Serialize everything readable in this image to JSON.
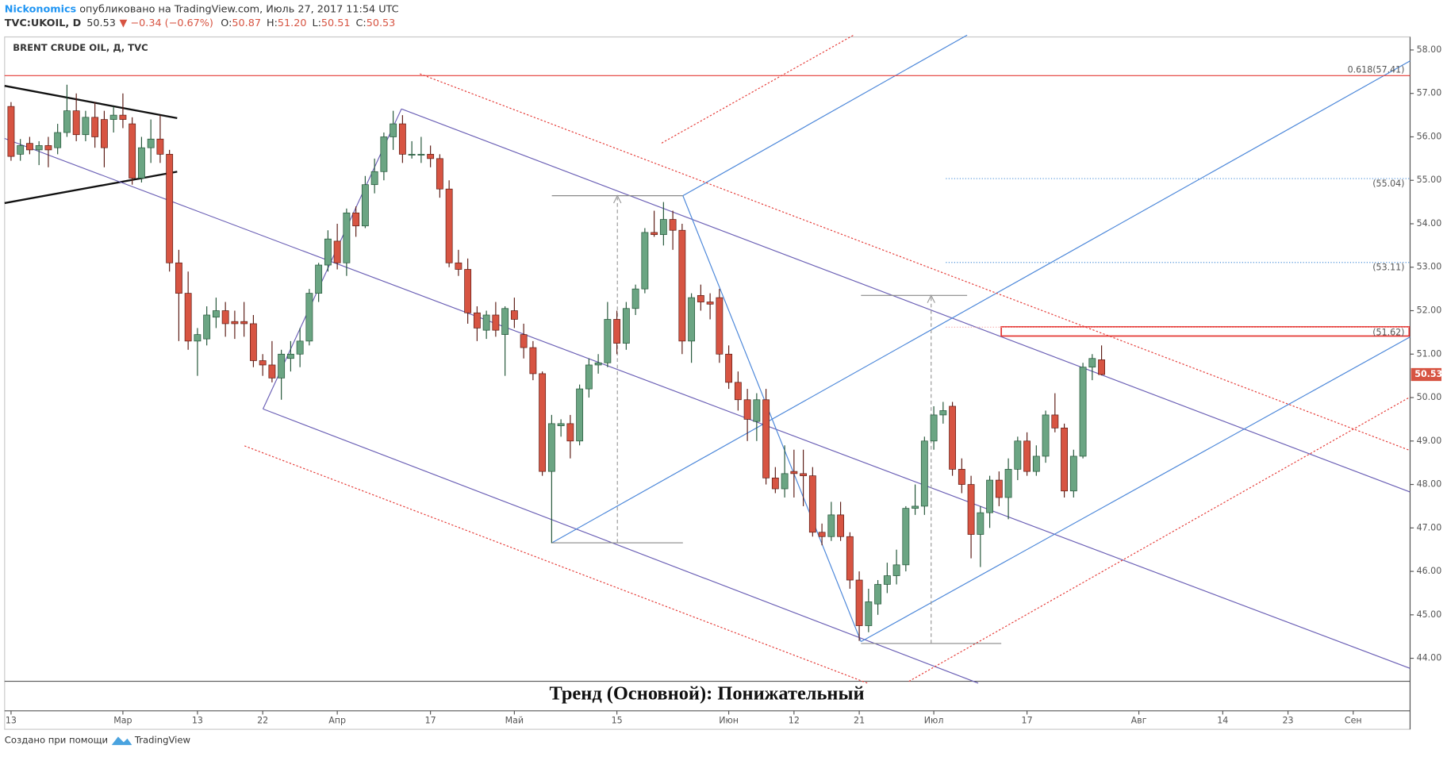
{
  "header": {
    "author": "Nickonomics",
    "published": " опубликовано на TradingView.com, Июль 27, 2017 11:54 UTC",
    "symbol": "TVC:UKOIL, D",
    "last": "50.53",
    "change": "▼ −0.34 (−0.67%)",
    "ohlc": [
      {
        "label": "O:",
        "value": "50.87"
      },
      {
        "label": "H:",
        "value": "51.20"
      },
      {
        "label": "L:",
        "value": "50.51"
      },
      {
        "label": "C:",
        "value": "50.53"
      }
    ]
  },
  "chart_data": {
    "type": "candlestick",
    "title": "BRENT CRUDE OIL, Д, TVC",
    "up_color": "#6ba583",
    "up_border": "#225437",
    "down_color": "#d75442",
    "down_border": "#5b1a13",
    "candles": [
      [
        56.7,
        56.8,
        55.45,
        55.55
      ],
      [
        55.6,
        55.95,
        55.45,
        55.8
      ],
      [
        55.85,
        56.0,
        55.6,
        55.7
      ],
      [
        55.7,
        55.9,
        55.35,
        55.8
      ],
      [
        55.8,
        56.0,
        55.3,
        55.7
      ],
      [
        55.75,
        56.3,
        55.6,
        56.1
      ],
      [
        56.1,
        57.2,
        56.0,
        56.6
      ],
      [
        56.6,
        57.0,
        55.9,
        56.05
      ],
      [
        56.05,
        56.6,
        55.9,
        56.45
      ],
      [
        56.45,
        56.8,
        55.75,
        56.0
      ],
      [
        56.4,
        56.6,
        55.3,
        55.75
      ],
      [
        56.4,
        56.7,
        56.1,
        56.5
      ],
      [
        56.5,
        57.0,
        56.2,
        56.4
      ],
      [
        56.3,
        56.45,
        54.9,
        55.05
      ],
      [
        55.05,
        56.0,
        54.95,
        55.75
      ],
      [
        55.75,
        56.4,
        55.4,
        55.95
      ],
      [
        55.95,
        56.5,
        55.4,
        55.6
      ],
      [
        55.6,
        55.7,
        52.9,
        53.1
      ],
      [
        53.1,
        53.4,
        51.3,
        52.4
      ],
      [
        52.4,
        52.9,
        51.1,
        51.3
      ],
      [
        51.3,
        51.6,
        50.5,
        51.45
      ],
      [
        51.35,
        52.1,
        51.2,
        51.9
      ],
      [
        51.85,
        52.3,
        51.6,
        52.0
      ],
      [
        52.0,
        52.2,
        51.4,
        51.7
      ],
      [
        51.75,
        52.0,
        51.35,
        51.7
      ],
      [
        51.75,
        52.2,
        51.4,
        51.7
      ],
      [
        51.7,
        51.9,
        50.7,
        50.85
      ],
      [
        50.85,
        51.0,
        50.5,
        50.75
      ],
      [
        50.75,
        51.3,
        50.35,
        50.45
      ],
      [
        50.45,
        51.1,
        49.95,
        51.0
      ],
      [
        50.9,
        51.3,
        50.6,
        51.0
      ],
      [
        51.0,
        51.6,
        50.7,
        51.3
      ],
      [
        51.3,
        52.5,
        51.2,
        52.4
      ],
      [
        52.4,
        53.1,
        52.2,
        53.05
      ],
      [
        53.05,
        53.85,
        52.9,
        53.65
      ],
      [
        53.6,
        54.0,
        52.95,
        53.1
      ],
      [
        53.1,
        54.35,
        52.8,
        54.25
      ],
      [
        54.25,
        54.4,
        53.7,
        53.95
      ],
      [
        53.95,
        55.1,
        53.9,
        54.9
      ],
      [
        54.9,
        55.5,
        54.7,
        55.2
      ],
      [
        55.2,
        56.1,
        55.0,
        56.0
      ],
      [
        56.0,
        56.6,
        55.7,
        56.3
      ],
      [
        56.3,
        56.5,
        55.4,
        55.6
      ],
      [
        55.6,
        55.9,
        55.5,
        55.6
      ],
      [
        55.6,
        56.0,
        55.4,
        55.6
      ],
      [
        55.6,
        55.8,
        55.3,
        55.5
      ],
      [
        55.5,
        55.6,
        54.6,
        54.8
      ],
      [
        54.8,
        55.0,
        53.0,
        53.1
      ],
      [
        53.1,
        53.4,
        52.8,
        52.95
      ],
      [
        52.95,
        53.2,
        51.7,
        51.95
      ],
      [
        51.95,
        52.1,
        51.3,
        51.6
      ],
      [
        51.55,
        52.0,
        51.35,
        51.9
      ],
      [
        51.9,
        52.2,
        51.4,
        51.55
      ],
      [
        51.45,
        52.1,
        50.5,
        52.05
      ],
      [
        52.0,
        52.3,
        51.6,
        51.8
      ],
      [
        51.45,
        51.7,
        50.9,
        51.15
      ],
      [
        51.15,
        51.3,
        50.4,
        50.55
      ],
      [
        50.55,
        50.6,
        48.2,
        48.3
      ],
      [
        48.3,
        49.6,
        46.65,
        49.4
      ],
      [
        49.35,
        49.5,
        49.1,
        49.4
      ],
      [
        49.4,
        49.6,
        48.6,
        49.0
      ],
      [
        49.0,
        50.3,
        48.9,
        50.2
      ],
      [
        50.2,
        50.9,
        50.0,
        50.75
      ],
      [
        50.75,
        51.0,
        50.55,
        50.8
      ],
      [
        50.8,
        52.2,
        50.7,
        51.8
      ],
      [
        51.8,
        52.0,
        51.0,
        51.25
      ],
      [
        51.25,
        52.2,
        51.1,
        52.05
      ],
      [
        52.05,
        52.6,
        51.9,
        52.5
      ],
      [
        52.5,
        53.9,
        52.4,
        53.8
      ],
      [
        53.8,
        54.3,
        53.7,
        53.75
      ],
      [
        53.75,
        54.5,
        53.5,
        54.1
      ],
      [
        54.1,
        54.3,
        53.4,
        53.85
      ],
      [
        53.85,
        54.0,
        51.0,
        51.3
      ],
      [
        51.3,
        52.4,
        50.8,
        52.3
      ],
      [
        52.35,
        52.6,
        52.0,
        52.2
      ],
      [
        52.2,
        52.4,
        51.8,
        52.15
      ],
      [
        52.3,
        52.5,
        50.8,
        51.0
      ],
      [
        51.0,
        51.2,
        50.2,
        50.35
      ],
      [
        50.35,
        50.6,
        49.7,
        49.95
      ],
      [
        49.95,
        50.2,
        49.0,
        49.5
      ],
      [
        49.45,
        50.1,
        49.0,
        49.95
      ],
      [
        49.95,
        50.2,
        48.0,
        48.15
      ],
      [
        48.15,
        48.4,
        47.8,
        47.9
      ],
      [
        47.9,
        48.9,
        47.7,
        48.25
      ],
      [
        48.3,
        48.8,
        47.7,
        48.25
      ],
      [
        48.25,
        48.8,
        47.5,
        48.2
      ],
      [
        48.2,
        48.4,
        46.8,
        46.9
      ],
      [
        46.9,
        47.1,
        46.6,
        46.8
      ],
      [
        46.8,
        47.6,
        46.7,
        47.3
      ],
      [
        47.3,
        47.6,
        46.7,
        46.8
      ],
      [
        46.8,
        46.9,
        45.6,
        45.8
      ],
      [
        45.8,
        46.0,
        44.4,
        44.75
      ],
      [
        44.75,
        45.6,
        44.6,
        45.3
      ],
      [
        45.25,
        45.8,
        45.0,
        45.7
      ],
      [
        45.7,
        46.2,
        45.5,
        45.9
      ],
      [
        45.9,
        46.5,
        45.7,
        46.15
      ],
      [
        46.15,
        47.5,
        46.0,
        47.45
      ],
      [
        47.45,
        48.0,
        47.3,
        47.5
      ],
      [
        47.5,
        49.1,
        47.3,
        49.0
      ],
      [
        49.0,
        49.8,
        48.8,
        49.6
      ],
      [
        49.6,
        49.9,
        49.4,
        49.7
      ],
      [
        49.8,
        49.9,
        48.2,
        48.35
      ],
      [
        48.35,
        48.6,
        47.8,
        48.0
      ],
      [
        48.0,
        48.2,
        46.3,
        46.85
      ],
      [
        46.85,
        47.5,
        46.1,
        47.35
      ],
      [
        47.35,
        48.2,
        47.0,
        48.1
      ],
      [
        48.1,
        48.3,
        47.5,
        47.7
      ],
      [
        47.7,
        48.6,
        47.2,
        48.35
      ],
      [
        48.35,
        49.1,
        48.1,
        49.0
      ],
      [
        49.0,
        49.2,
        48.2,
        48.3
      ],
      [
        48.3,
        48.9,
        48.2,
        48.65
      ],
      [
        48.65,
        49.7,
        48.5,
        49.6
      ],
      [
        49.6,
        50.1,
        49.2,
        49.3
      ],
      [
        49.3,
        49.4,
        47.7,
        47.85
      ],
      [
        47.85,
        48.8,
        47.7,
        48.65
      ],
      [
        48.65,
        50.8,
        48.6,
        50.7
      ],
      [
        50.7,
        51.0,
        50.4,
        50.9
      ],
      [
        50.87,
        51.2,
        50.51,
        50.53
      ]
    ],
    "ylim": [
      43.47,
      58.3
    ],
    "yticks": [
      {
        "value": 44,
        "label": "44.00"
      },
      {
        "value": 45,
        "label": "45.00"
      },
      {
        "value": 46,
        "label": "46.00"
      },
      {
        "value": 47,
        "label": "47.00"
      },
      {
        "value": 48,
        "label": "48.00"
      },
      {
        "value": 49,
        "label": "49.00"
      },
      {
        "value": 50,
        "label": "50.00"
      },
      {
        "value": 51,
        "label": "51.00"
      },
      {
        "value": 52,
        "label": "52.00"
      },
      {
        "value": 53,
        "label": "53.00"
      },
      {
        "value": 54,
        "label": "54.00"
      },
      {
        "value": 55,
        "label": "55.00"
      },
      {
        "value": 56,
        "label": "56.00"
      },
      {
        "value": 57,
        "label": "57.00"
      },
      {
        "value": 58,
        "label": "58.00"
      }
    ],
    "xlim": [
      -0.69,
      150.1
    ],
    "xticks": [
      {
        "value": 0,
        "label": "13"
      },
      {
        "value": 12,
        "label": "Мар"
      },
      {
        "value": 20,
        "label": "13"
      },
      {
        "value": 27,
        "label": "22"
      },
      {
        "value": 35,
        "label": "Апр"
      },
      {
        "value": 45,
        "label": "17"
      },
      {
        "value": 54,
        "label": "Май"
      },
      {
        "value": 65,
        "label": "15"
      },
      {
        "value": 77,
        "label": "Июн"
      },
      {
        "value": 84,
        "label": "12"
      },
      {
        "value": 91,
        "label": "21"
      },
      {
        "value": 99,
        "label": "Июл"
      },
      {
        "value": 109,
        "label": "17"
      },
      {
        "value": 121,
        "label": "Авг"
      },
      {
        "value": 130,
        "label": "14"
      },
      {
        "value": 137,
        "label": "23"
      },
      {
        "value": 144,
        "label": "Сен"
      }
    ],
    "levels": [
      {
        "value": 57.41,
        "label": "0.618(57.41)",
        "color": "#e53935",
        "style": "solid"
      },
      {
        "value": 55.04,
        "label": "(55.04)",
        "color": "#4a90d9",
        "style": "dotted"
      },
      {
        "value": 53.11,
        "label": "(53.11)",
        "color": "#4a90d9",
        "style": "dotted"
      },
      {
        "value": 51.62,
        "label": "(51.62)",
        "color": "#f4a0a0",
        "style": "dotted"
      }
    ],
    "last_color": "#d75442",
    "note": "Тренд (Основной): Понижательный"
  },
  "footer": {
    "text": "Создано при помощи",
    "brand": "TradingView"
  }
}
